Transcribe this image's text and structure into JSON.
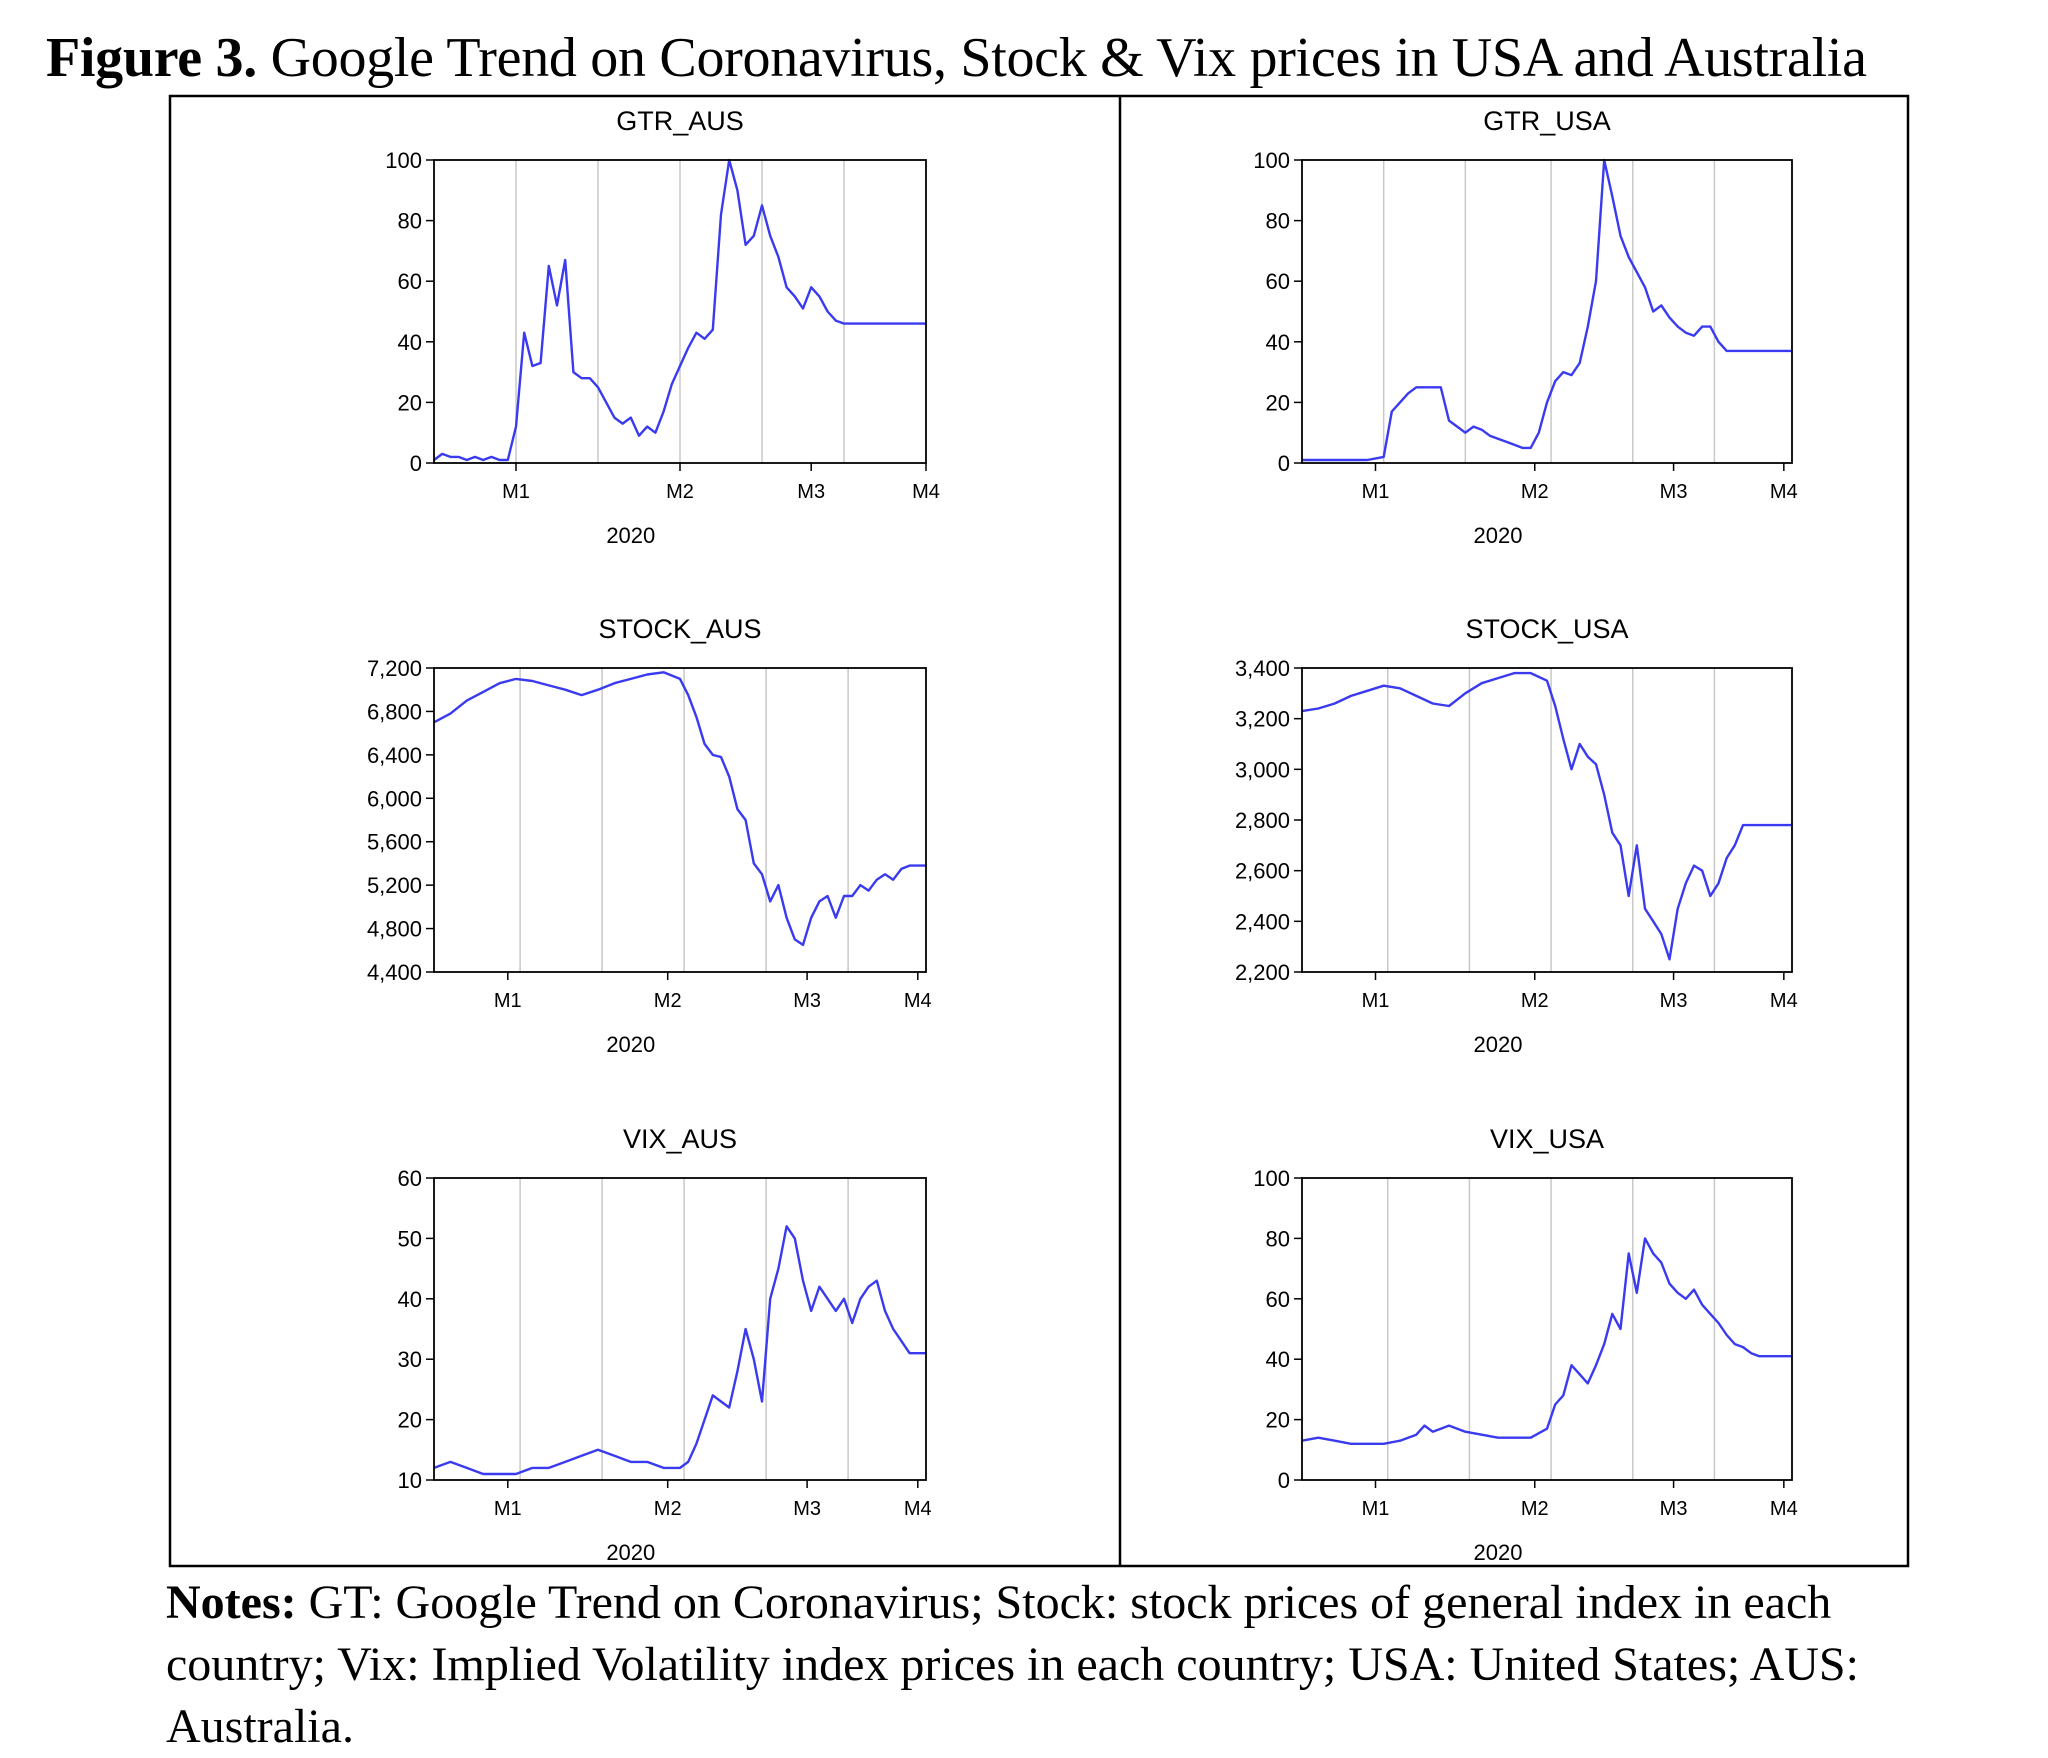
{
  "figure": {
    "label": "Figure 3.",
    "title": "Google Trend on Coronavirus, Stock & Vix prices in USA and Australia"
  },
  "notes": {
    "label": "Notes:",
    "text": "GT: Google Trend on Coronavirus; Stock: stock prices of general index in each country; Vix: Implied Volatility index prices in each country; USA: United States; AUS: Australia."
  },
  "colors": {
    "line": "#3a3af0",
    "grid": "#c8c8c8",
    "axis": "#000000"
  },
  "chart_data": [
    {
      "id": "gtr_aus",
      "type": "line",
      "title": "GTR_AUS",
      "xlabel": "2020",
      "ylabel": "",
      "ylim": [
        0,
        100
      ],
      "yticks": [
        0,
        20,
        40,
        60,
        80,
        100
      ],
      "ytick_labels": [
        "0",
        "20",
        "40",
        "60",
        "80",
        "100"
      ],
      "xlim": [
        0,
        120
      ],
      "xticks": [
        20,
        60,
        92,
        120
      ],
      "xtick_labels": [
        "M1",
        "M2",
        "M3",
        "M4"
      ],
      "grid_x": [
        20,
        40,
        60,
        80,
        100
      ],
      "x": [
        0,
        2,
        4,
        6,
        8,
        10,
        12,
        14,
        16,
        18,
        20,
        22,
        24,
        26,
        28,
        30,
        32,
        34,
        36,
        38,
        40,
        42,
        44,
        46,
        48,
        50,
        52,
        54,
        56,
        58,
        60,
        62,
        64,
        66,
        68,
        70,
        72,
        74,
        76,
        78,
        80,
        82,
        84,
        86,
        88,
        90,
        92,
        94,
        96,
        98,
        100,
        102,
        104,
        106,
        108,
        110,
        112,
        114,
        116,
        118,
        120
      ],
      "y": [
        1,
        3,
        2,
        2,
        1,
        2,
        1,
        2,
        1,
        1,
        12,
        43,
        32,
        33,
        65,
        52,
        67,
        30,
        28,
        28,
        25,
        20,
        15,
        13,
        15,
        9,
        12,
        10,
        17,
        26,
        32,
        38,
        43,
        41,
        44,
        82,
        100,
        90,
        72,
        75,
        85,
        75,
        68,
        58,
        55,
        51,
        58,
        55,
        50,
        47,
        46,
        46,
        46,
        46,
        46,
        46,
        46,
        46,
        46,
        46,
        46
      ],
      "series_name": "GTR_AUS"
    },
    {
      "id": "gtr_usa",
      "type": "line",
      "title": "GTR_USA",
      "xlabel": "2020",
      "ylabel": "",
      "ylim": [
        0,
        100
      ],
      "yticks": [
        0,
        20,
        40,
        60,
        80,
        100
      ],
      "ytick_labels": [
        "0",
        "20",
        "40",
        "60",
        "80",
        "100"
      ],
      "xlim": [
        0,
        120
      ],
      "xticks": [
        18,
        57,
        91,
        118
      ],
      "xtick_labels": [
        "M1",
        "M2",
        "M3",
        "M4"
      ],
      "grid_x": [
        20,
        40,
        61,
        81,
        101
      ],
      "x": [
        0,
        4,
        8,
        12,
        16,
        20,
        22,
        24,
        26,
        28,
        30,
        32,
        34,
        36,
        38,
        40,
        42,
        44,
        46,
        48,
        50,
        52,
        54,
        56,
        58,
        60,
        62,
        64,
        66,
        68,
        70,
        72,
        74,
        76,
        78,
        80,
        82,
        84,
        86,
        88,
        90,
        92,
        94,
        96,
        98,
        100,
        102,
        104,
        106,
        108,
        110,
        112,
        114,
        116,
        118,
        120
      ],
      "y": [
        1,
        1,
        1,
        1,
        1,
        2,
        17,
        20,
        23,
        25,
        25,
        25,
        25,
        14,
        12,
        10,
        12,
        11,
        9,
        8,
        7,
        6,
        5,
        5,
        10,
        20,
        27,
        30,
        29,
        33,
        45,
        60,
        100,
        88,
        75,
        68,
        63,
        58,
        50,
        52,
        48,
        45,
        43,
        42,
        45,
        45,
        40,
        37,
        37,
        37,
        37,
        37,
        37,
        37,
        37,
        37
      ],
      "series_name": "GTR_USA"
    },
    {
      "id": "stock_aus",
      "type": "line",
      "title": "STOCK_AUS",
      "xlabel": "2020",
      "ylabel": "",
      "ylim": [
        4400,
        7200
      ],
      "yticks": [
        4400,
        4800,
        5200,
        5600,
        6000,
        6400,
        6800,
        7200
      ],
      "ytick_labels": [
        "4,400",
        "4,800",
        "5,200",
        "5,600",
        "6,000",
        "6,400",
        "6,800",
        "7,200"
      ],
      "xlim": [
        0,
        120
      ],
      "xticks": [
        18,
        57,
        91,
        118
      ],
      "xtick_labels": [
        "M1",
        "M2",
        "M3",
        "M4"
      ],
      "grid_x": [
        21,
        41,
        61,
        81,
        101
      ],
      "x": [
        0,
        4,
        8,
        12,
        16,
        20,
        24,
        28,
        32,
        36,
        40,
        44,
        48,
        52,
        56,
        60,
        62,
        64,
        66,
        68,
        70,
        72,
        74,
        76,
        78,
        80,
        82,
        84,
        86,
        88,
        90,
        92,
        94,
        96,
        98,
        100,
        102,
        104,
        106,
        108,
        110,
        112,
        114,
        116,
        118,
        120
      ],
      "y": [
        6700,
        6780,
        6900,
        6980,
        7060,
        7100,
        7080,
        7040,
        7000,
        6950,
        7000,
        7060,
        7100,
        7140,
        7160,
        7100,
        6950,
        6750,
        6500,
        6400,
        6380,
        6200,
        5900,
        5800,
        5400,
        5300,
        5050,
        5200,
        4900,
        4700,
        4650,
        4900,
        5050,
        5100,
        4900,
        5100,
        5100,
        5200,
        5150,
        5250,
        5300,
        5250,
        5350,
        5380,
        5380,
        5380
      ],
      "series_name": "STOCK_AUS"
    },
    {
      "id": "stock_usa",
      "type": "line",
      "title": "STOCK_USA",
      "xlabel": "2020",
      "ylabel": "",
      "ylim": [
        2200,
        3400
      ],
      "yticks": [
        2200,
        2400,
        2600,
        2800,
        3000,
        3200,
        3400
      ],
      "ytick_labels": [
        "2,200",
        "2,400",
        "2,600",
        "2,800",
        "3,000",
        "3,200",
        "3,400"
      ],
      "xlim": [
        0,
        120
      ],
      "xticks": [
        18,
        57,
        91,
        118
      ],
      "xtick_labels": [
        "M1",
        "M2",
        "M3",
        "M4"
      ],
      "grid_x": [
        21,
        41,
        61,
        81,
        101
      ],
      "x": [
        0,
        4,
        8,
        12,
        16,
        20,
        24,
        28,
        32,
        36,
        40,
        44,
        48,
        52,
        56,
        60,
        62,
        64,
        66,
        68,
        70,
        72,
        74,
        76,
        78,
        80,
        82,
        84,
        86,
        88,
        90,
        92,
        94,
        96,
        98,
        100,
        102,
        104,
        106,
        108,
        110,
        112,
        114,
        116,
        118,
        120
      ],
      "y": [
        3230,
        3240,
        3260,
        3290,
        3310,
        3330,
        3320,
        3290,
        3260,
        3250,
        3300,
        3340,
        3360,
        3380,
        3380,
        3350,
        3250,
        3120,
        3000,
        3100,
        3050,
        3020,
        2900,
        2750,
        2700,
        2500,
        2700,
        2450,
        2400,
        2350,
        2250,
        2450,
        2550,
        2620,
        2600,
        2500,
        2550,
        2650,
        2700,
        2780,
        2780,
        2780,
        2780,
        2780,
        2780,
        2780
      ],
      "series_name": "STOCK_USA"
    },
    {
      "id": "vix_aus",
      "type": "line",
      "title": "VIX_AUS",
      "xlabel": "2020",
      "ylabel": "",
      "ylim": [
        10,
        60
      ],
      "yticks": [
        10,
        20,
        30,
        40,
        50,
        60
      ],
      "ytick_labels": [
        "10",
        "20",
        "30",
        "40",
        "50",
        "60"
      ],
      "xlim": [
        0,
        120
      ],
      "xticks": [
        18,
        57,
        91,
        118
      ],
      "xtick_labels": [
        "M1",
        "M2",
        "M3",
        "M4"
      ],
      "grid_x": [
        21,
        41,
        61,
        81,
        101
      ],
      "x": [
        0,
        4,
        8,
        12,
        16,
        20,
        24,
        28,
        32,
        36,
        40,
        44,
        48,
        52,
        56,
        60,
        62,
        64,
        66,
        68,
        70,
        72,
        74,
        76,
        78,
        80,
        82,
        84,
        86,
        88,
        90,
        92,
        94,
        96,
        98,
        100,
        102,
        104,
        106,
        108,
        110,
        112,
        114,
        116,
        118,
        120
      ],
      "y": [
        12,
        13,
        12,
        11,
        11,
        11,
        12,
        12,
        13,
        14,
        15,
        14,
        13,
        13,
        12,
        12,
        13,
        16,
        20,
        24,
        23,
        22,
        28,
        35,
        30,
        23,
        40,
        45,
        52,
        50,
        43,
        38,
        42,
        40,
        38,
        40,
        36,
        40,
        42,
        43,
        38,
        35,
        33,
        31,
        31,
        31
      ],
      "series_name": "VIX_AUS"
    },
    {
      "id": "vix_usa",
      "type": "line",
      "title": "VIX_USA",
      "xlabel": "2020",
      "ylabel": "",
      "ylim": [
        0,
        100
      ],
      "yticks": [
        0,
        20,
        40,
        60,
        80,
        100
      ],
      "ytick_labels": [
        "0",
        "20",
        "40",
        "60",
        "80",
        "100"
      ],
      "xlim": [
        0,
        120
      ],
      "xticks": [
        18,
        57,
        91,
        118
      ],
      "xtick_labels": [
        "M1",
        "M2",
        "M3",
        "M4"
      ],
      "grid_x": [
        21,
        41,
        61,
        81,
        101
      ],
      "x": [
        0,
        4,
        8,
        12,
        16,
        20,
        24,
        28,
        30,
        32,
        34,
        36,
        40,
        44,
        48,
        52,
        56,
        60,
        62,
        64,
        66,
        68,
        70,
        72,
        74,
        76,
        78,
        80,
        82,
        84,
        86,
        88,
        90,
        92,
        94,
        96,
        98,
        100,
        102,
        104,
        106,
        108,
        110,
        112,
        114,
        116,
        118,
        120
      ],
      "y": [
        13,
        14,
        13,
        12,
        12,
        12,
        13,
        15,
        18,
        16,
        17,
        18,
        16,
        15,
        14,
        14,
        14,
        17,
        25,
        28,
        38,
        35,
        32,
        38,
        45,
        55,
        50,
        75,
        62,
        80,
        75,
        72,
        65,
        62,
        60,
        63,
        58,
        55,
        52,
        48,
        45,
        44,
        42,
        41,
        41,
        41,
        41,
        41
      ],
      "series_name": "VIX_USA"
    }
  ]
}
